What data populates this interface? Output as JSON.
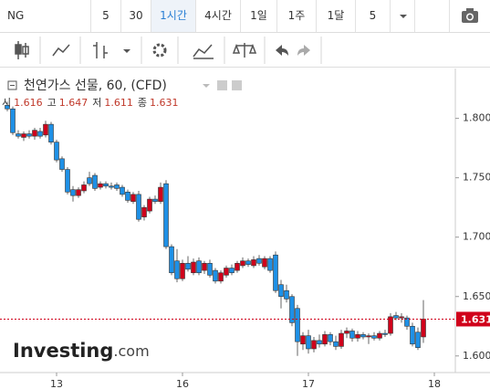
{
  "toolbar": {
    "symbol": "NG",
    "intervals": [
      "5",
      "30",
      "1시간",
      "4시간",
      "1일",
      "1주",
      "1달",
      "5"
    ],
    "active_interval": 2
  },
  "chart_data": {
    "type": "candlestick",
    "title": "천연가스 선물, 60, (CFD)",
    "legend_labels": [
      "시",
      "고",
      "저",
      "종"
    ],
    "watermark": [
      "Investing",
      ".com"
    ],
    "categories": [
      null,
      null,
      null,
      null,
      null,
      null,
      null,
      null,
      null,
      "13",
      null,
      null,
      null,
      null,
      null,
      null,
      null,
      null,
      null,
      null,
      null,
      null,
      null,
      null,
      null,
      null,
      null,
      null,
      null,
      null,
      null,
      null,
      "16",
      null,
      null,
      null,
      null,
      null,
      null,
      null,
      null,
      null,
      null,
      null,
      null,
      null,
      null,
      null,
      null,
      null,
      null,
      null,
      null,
      null,
      null,
      "17",
      null,
      null,
      null,
      null,
      null,
      null,
      null,
      null,
      null,
      null,
      null,
      null,
      null,
      null,
      null,
      null,
      null,
      null,
      null,
      null,
      null,
      null,
      "18"
    ],
    "open": [
      1.811,
      1.808,
      1.787,
      1.784,
      1.787,
      1.785,
      1.789,
      1.786,
      1.795,
      1.78,
      1.766,
      1.757,
      1.74,
      1.735,
      1.739,
      1.75,
      1.752,
      1.742,
      1.745,
      1.743,
      1.744,
      1.742,
      1.738,
      1.73,
      1.736,
      1.717,
      1.722,
      1.732,
      1.73,
      1.745,
      1.692,
      1.68,
      1.665,
      1.678,
      1.67,
      1.68,
      1.672,
      1.678,
      1.672,
      1.663,
      1.668,
      1.674,
      1.672,
      1.676,
      1.68,
      1.676,
      1.682,
      1.675,
      1.682,
      1.685,
      1.66,
      1.655,
      1.65,
      1.64,
      1.61,
      1.617,
      1.606,
      1.613,
      1.61,
      1.618,
      1.612,
      1.608,
      1.619,
      1.621,
      1.615,
      1.618,
      1.616,
      1.617,
      1.615,
      1.619,
      1.619,
      1.634,
      1.632,
      1.632,
      1.625,
      1.62,
      1.616,
      null,
      null
    ],
    "high": [
      1.814,
      1.81,
      1.79,
      1.789,
      1.79,
      1.792,
      1.792,
      1.798,
      1.797,
      1.782,
      1.768,
      1.759,
      1.743,
      1.742,
      1.747,
      1.755,
      1.754,
      1.747,
      1.747,
      1.746,
      1.746,
      1.744,
      1.74,
      1.738,
      1.739,
      1.727,
      1.734,
      1.735,
      1.746,
      1.748,
      1.694,
      1.69,
      1.681,
      1.684,
      1.682,
      1.683,
      1.68,
      1.681,
      1.674,
      1.672,
      1.676,
      1.677,
      1.68,
      1.683,
      1.682,
      1.684,
      1.685,
      1.684,
      1.684,
      1.688,
      1.664,
      1.66,
      1.652,
      1.643,
      1.62,
      1.622,
      1.616,
      1.618,
      1.621,
      1.62,
      1.617,
      1.622,
      1.624,
      1.623,
      1.621,
      1.62,
      1.619,
      1.62,
      1.621,
      1.622,
      1.636,
      1.637,
      1.636,
      1.634,
      1.628,
      1.624,
      1.647,
      null,
      null
    ],
    "low": [
      1.806,
      1.786,
      1.783,
      1.781,
      1.783,
      1.782,
      1.783,
      1.784,
      1.778,
      1.763,
      1.755,
      1.736,
      1.73,
      1.733,
      1.737,
      1.743,
      1.739,
      1.74,
      1.741,
      1.74,
      1.739,
      1.734,
      1.729,
      1.728,
      1.713,
      1.714,
      1.72,
      1.728,
      1.728,
      1.69,
      1.668,
      1.662,
      1.663,
      1.671,
      1.668,
      1.668,
      1.669,
      1.666,
      1.661,
      1.661,
      1.666,
      1.668,
      1.67,
      1.674,
      1.675,
      1.674,
      1.676,
      1.673,
      1.67,
      1.653,
      1.64,
      1.645,
      1.625,
      1.6,
      1.605,
      1.602,
      1.603,
      1.607,
      1.608,
      1.609,
      1.605,
      1.606,
      1.615,
      1.612,
      1.612,
      1.614,
      1.61,
      1.613,
      1.613,
      1.616,
      1.617,
      1.63,
      1.628,
      1.622,
      1.608,
      1.605,
      1.611,
      null,
      null
    ],
    "close": [
      1.808,
      1.788,
      1.785,
      1.787,
      1.785,
      1.79,
      1.785,
      1.795,
      1.78,
      1.765,
      1.757,
      1.738,
      1.735,
      1.74,
      1.744,
      1.745,
      1.741,
      1.745,
      1.743,
      1.742,
      1.741,
      1.736,
      1.731,
      1.736,
      1.715,
      1.725,
      1.732,
      1.73,
      1.742,
      1.692,
      1.67,
      1.665,
      1.678,
      1.673,
      1.679,
      1.67,
      1.678,
      1.668,
      1.663,
      1.67,
      1.674,
      1.67,
      1.678,
      1.68,
      1.677,
      1.681,
      1.678,
      1.682,
      1.672,
      1.655,
      1.65,
      1.648,
      1.628,
      1.612,
      1.617,
      1.606,
      1.613,
      1.61,
      1.618,
      1.612,
      1.608,
      1.619,
      1.621,
      1.615,
      1.618,
      1.616,
      1.617,
      1.615,
      1.619,
      1.618,
      1.633,
      1.632,
      1.633,
      1.625,
      1.61,
      1.607,
      1.631,
      null,
      null
    ],
    "up_color": "#d0021b",
    "down_color": "#1e90e6",
    "ylim": [
      1.586,
      1.842
    ],
    "yticks": [
      {
        "value": 1.6,
        "label": "1.600"
      },
      {
        "value": 1.65,
        "label": "1.650"
      },
      {
        "value": 1.7,
        "label": "1.700"
      },
      {
        "value": 1.75,
        "label": "1.750"
      },
      {
        "value": 1.8,
        "label": "1.800"
      }
    ],
    "price_line_color": "#d0021b"
  }
}
